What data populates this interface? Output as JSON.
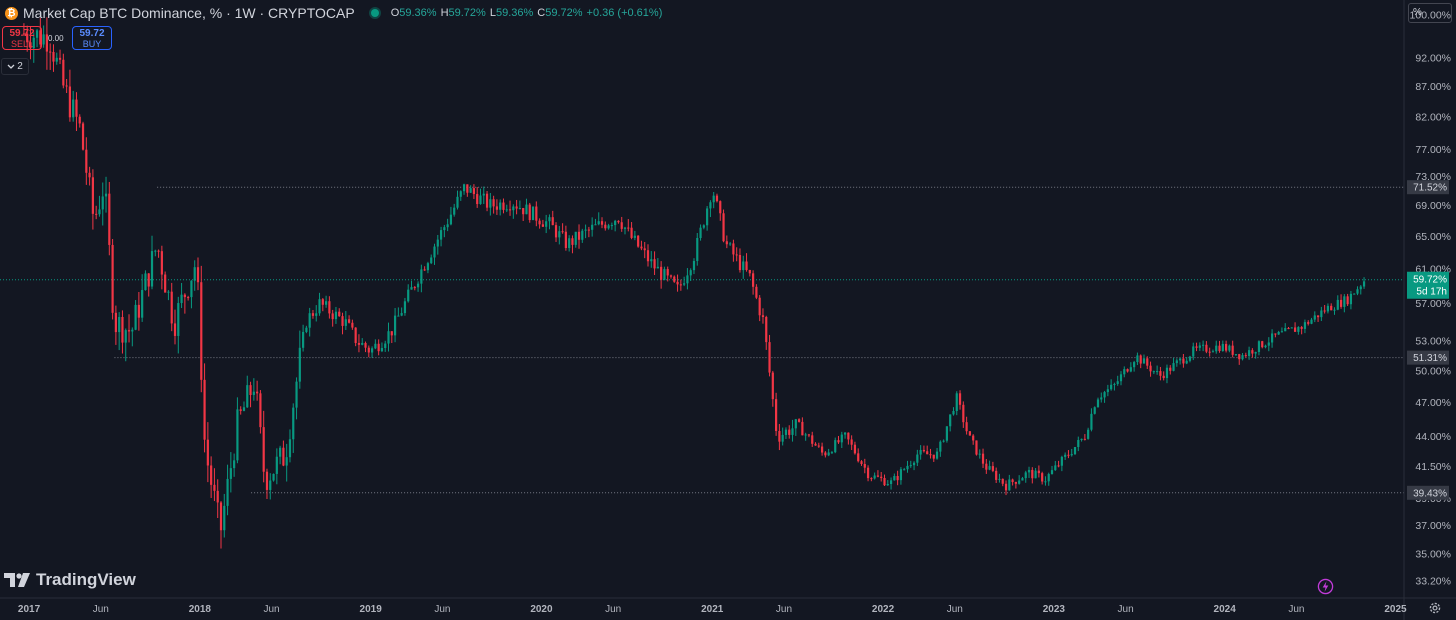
{
  "header": {
    "title": "Market Cap BTC Dominance, % · 1W · CRYPTOCAP",
    "coin_glyph": "₿",
    "ohlc": [
      {
        "key": "O",
        "value": "59.36%"
      },
      {
        "key": "H",
        "value": "59.72%"
      },
      {
        "key": "L",
        "value": "59.36%"
      },
      {
        "key": "C",
        "value": "59.72%"
      }
    ],
    "change": "+0.36 (+0.61%)"
  },
  "trade": {
    "sell_price": "59.72",
    "sell_label": "SELL",
    "spread": "0.00",
    "buy_price": "59.72",
    "buy_label": "BUY"
  },
  "collapse_count": "2",
  "unit_button": "%",
  "brand": "TradingView",
  "colors": {
    "up": "#089981",
    "down": "#f23645",
    "background": "#131722",
    "accent": "#2962ff"
  },
  "icons": [
    "bitcoin-icon",
    "live-dot-icon",
    "chevron-down-icon",
    "tradingview-logo-icon",
    "lightning-icon",
    "gear-icon"
  ],
  "chart_data": {
    "type": "candlestick",
    "scale": "log",
    "ylim": [
      32.5,
      103
    ],
    "y_ticks": [
      "100.00%",
      "92.00%",
      "87.00%",
      "82.00%",
      "77.00%",
      "73.00%",
      "69.00%",
      "65.00%",
      "61.00%",
      "57.00%",
      "53.00%",
      "50.00%",
      "47.00%",
      "44.00%",
      "41.50%",
      "39.00%",
      "37.00%",
      "35.00%",
      "33.20%"
    ],
    "x_ticks": [
      {
        "label": "2017",
        "t": 2017.0
      },
      {
        "label": "Jun",
        "t": 2017.42
      },
      {
        "label": "2018",
        "t": 2018.0
      },
      {
        "label": "Jun",
        "t": 2018.42
      },
      {
        "label": "2019",
        "t": 2019.0
      },
      {
        "label": "Jun",
        "t": 2019.42
      },
      {
        "label": "2020",
        "t": 2020.0
      },
      {
        "label": "Jun",
        "t": 2020.42
      },
      {
        "label": "2021",
        "t": 2021.0
      },
      {
        "label": "Jun",
        "t": 2021.42
      },
      {
        "label": "2022",
        "t": 2022.0
      },
      {
        "label": "Jun",
        "t": 2022.42
      },
      {
        "label": "2023",
        "t": 2023.0
      },
      {
        "label": "Jun",
        "t": 2023.42
      },
      {
        "label": "2024",
        "t": 2024.0
      },
      {
        "label": "Jun",
        "t": 2024.42
      },
      {
        "label": "2025",
        "t": 2025.0
      }
    ],
    "horizontal_levels": [
      {
        "value": 71.52,
        "label": "71.52%",
        "start": 2017.75
      },
      {
        "value": 51.31,
        "label": "51.31%",
        "start": 2017.5
      },
      {
        "value": 39.43,
        "label": "39.43%",
        "start": 2018.3
      }
    ],
    "last_price": {
      "value": 59.72,
      "label": "59.72%",
      "countdown": "5d 17h"
    },
    "trend_points": [
      [
        2016.97,
        96.5
      ],
      [
        2017.12,
        95.8
      ],
      [
        2017.2,
        87
      ],
      [
        2017.3,
        80
      ],
      [
        2017.38,
        67
      ],
      [
        2017.44,
        72
      ],
      [
        2017.5,
        55
      ],
      [
        2017.6,
        54
      ],
      [
        2017.75,
        64
      ],
      [
        2017.85,
        55
      ],
      [
        2017.98,
        62
      ],
      [
        2018.03,
        43
      ],
      [
        2018.12,
        36.5
      ],
      [
        2018.22,
        45
      ],
      [
        2018.32,
        49
      ],
      [
        2018.38,
        40.5
      ],
      [
        2018.5,
        42.5
      ],
      [
        2018.62,
        55
      ],
      [
        2018.7,
        57
      ],
      [
        2018.85,
        55
      ],
      [
        2018.92,
        53
      ],
      [
        2019.0,
        52
      ],
      [
        2019.12,
        54
      ],
      [
        2019.3,
        61
      ],
      [
        2019.45,
        67
      ],
      [
        2019.55,
        71.5
      ],
      [
        2019.7,
        69
      ],
      [
        2019.83,
        69.5
      ],
      [
        2020.05,
        66.5
      ],
      [
        2020.15,
        64
      ],
      [
        2020.3,
        66
      ],
      [
        2020.45,
        67.5
      ],
      [
        2020.52,
        65
      ],
      [
        2020.65,
        61.5
      ],
      [
        2020.8,
        58.5
      ],
      [
        2020.9,
        63
      ],
      [
        2021.0,
        71.5
      ],
      [
        2021.08,
        64
      ],
      [
        2021.22,
        60
      ],
      [
        2021.3,
        55
      ],
      [
        2021.38,
        44
      ],
      [
        2021.5,
        45
      ],
      [
        2021.65,
        42.5
      ],
      [
        2021.78,
        44
      ],
      [
        2021.92,
        40.8
      ],
      [
        2022.05,
        40.2
      ],
      [
        2022.2,
        42.5
      ],
      [
        2022.32,
        42.5
      ],
      [
        2022.43,
        47.5
      ],
      [
        2022.5,
        44
      ],
      [
        2022.6,
        41.5
      ],
      [
        2022.72,
        40
      ],
      [
        2022.85,
        41
      ],
      [
        2022.95,
        40.5
      ],
      [
        2023.05,
        42
      ],
      [
        2023.18,
        44
      ],
      [
        2023.25,
        47.5
      ],
      [
        2023.35,
        48.5
      ],
      [
        2023.48,
        51.5
      ],
      [
        2023.62,
        49.5
      ],
      [
        2023.82,
        52
      ],
      [
        2023.98,
        52.5
      ],
      [
        2024.1,
        51.5
      ],
      [
        2024.3,
        53.5
      ],
      [
        2024.45,
        54.5
      ],
      [
        2024.6,
        56.5
      ],
      [
        2024.72,
        57.5
      ],
      [
        2024.82,
        59.72
      ]
    ]
  }
}
